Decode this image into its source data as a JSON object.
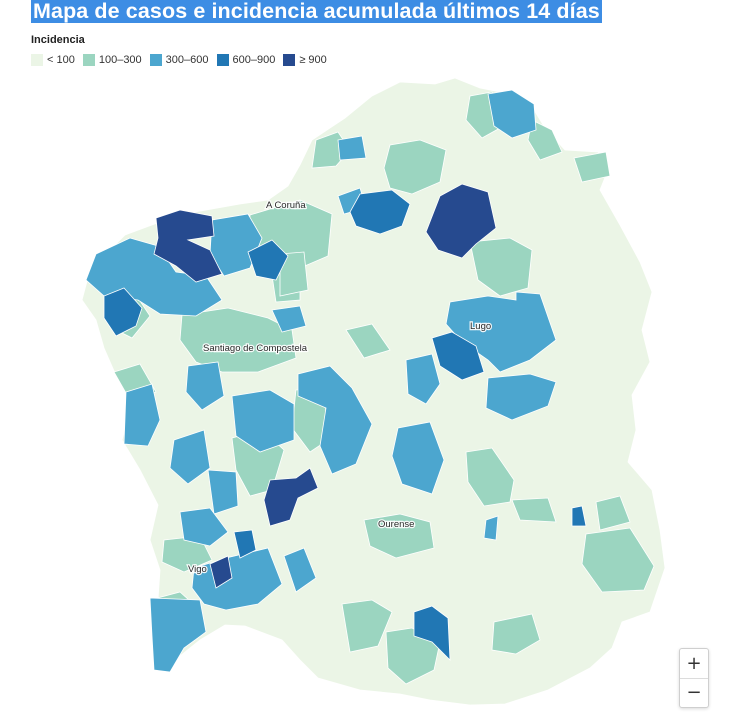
{
  "title": "Mapa de casos e incidencia acumulada últimos 14 días",
  "legend": {
    "title": "Incidencia",
    "items": [
      {
        "label": "< 100",
        "color": "#ebf5e6"
      },
      {
        "label": "100–300",
        "color": "#9bd5c0"
      },
      {
        "label": "300–600",
        "color": "#4ca6cf"
      },
      {
        "label": "600–900",
        "color": "#2177b4"
      },
      {
        "label": "≥ 900",
        "color": "#264a8f"
      }
    ]
  },
  "map": {
    "region": "Galicia",
    "cities": [
      {
        "name": "A Coruña"
      },
      {
        "name": "Santiago de Compostela"
      },
      {
        "name": "Lugo"
      },
      {
        "name": "Ourense"
      },
      {
        "name": "Vigo"
      }
    ]
  },
  "zoom": {
    "in_label": "+",
    "out_label": "−"
  }
}
